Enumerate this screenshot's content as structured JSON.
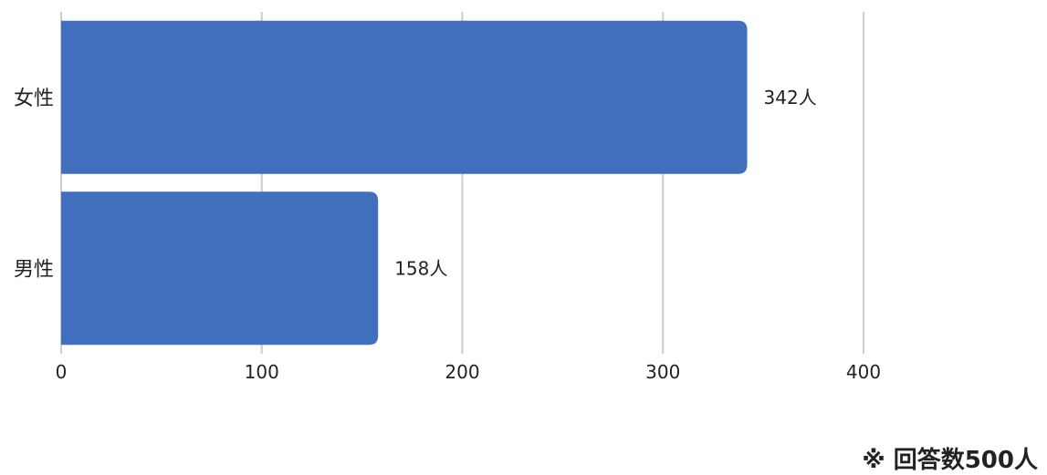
{
  "chart_data": {
    "type": "bar",
    "orientation": "horizontal",
    "categories": [
      "女性",
      "男性"
    ],
    "values": [
      342,
      158
    ],
    "data_labels": [
      "342人",
      "158人"
    ],
    "x_ticks": [
      0,
      100,
      200,
      300,
      400
    ],
    "xlim": [
      0,
      400
    ],
    "grid": true,
    "bar_color": "#416fbe"
  },
  "footnote": "※ 回答数500人"
}
